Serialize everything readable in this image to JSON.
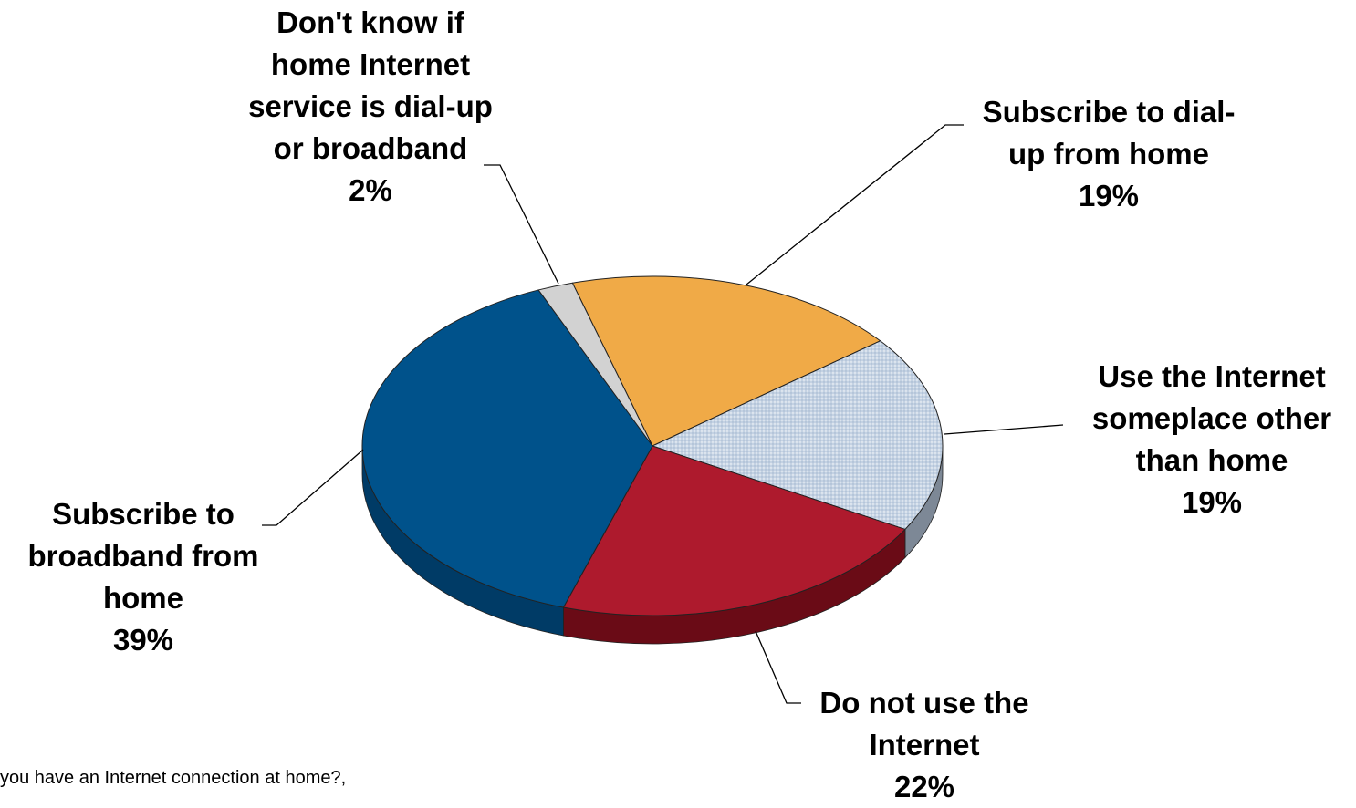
{
  "chart_data": {
    "type": "pie",
    "title": "",
    "slices": [
      {
        "label_lines": [
          "Subscribe to dial-",
          "up from home"
        ],
        "value": 19,
        "percent_label": "19%",
        "color": "#f0aa47",
        "side_color": "#a86f20"
      },
      {
        "label_lines": [
          "Use the Internet",
          "someplace other",
          "than home"
        ],
        "value": 19,
        "percent_label": "19%",
        "color": "#c4d2e3",
        "side_color": "#7d8896"
      },
      {
        "label_lines": [
          "Do not use the",
          "Internet"
        ],
        "value": 22,
        "percent_label": "22%",
        "color": "#ae1a2d",
        "side_color": "#6a0b16"
      },
      {
        "label_lines": [
          "Subscribe to",
          "broadband from",
          "home"
        ],
        "value": 39,
        "percent_label": "39%",
        "color": "#00528b",
        "side_color": "#003b66"
      },
      {
        "label_lines": [
          "Don't know if",
          "home Internet",
          "service is dial-up",
          "or broadband"
        ],
        "value": 2,
        "percent_label": "2%",
        "color": "#d2d2d2",
        "side_color": "#8e8e8e"
      }
    ]
  },
  "footnote": "you have an Internet connection at home?,"
}
